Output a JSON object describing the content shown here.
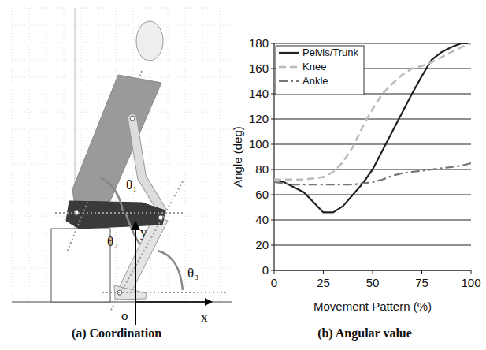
{
  "diagram": {
    "caption": "(a) Coordination",
    "labels": {
      "theta1": "θ₁",
      "theta2": "θ₂",
      "theta3": "θ₃",
      "x": "x",
      "y": "y",
      "o": "o"
    }
  },
  "chart_data": {
    "type": "line",
    "title": "(b) Angular value",
    "x_label": "Movement Pattern (%)",
    "y_label": "Angle (deg)",
    "x": [
      0,
      5,
      10,
      15,
      20,
      25,
      30,
      35,
      40,
      45,
      50,
      55,
      60,
      65,
      70,
      75,
      80,
      85,
      90,
      95,
      100
    ],
    "series": [
      {
        "name": "Pelvis/Trunk",
        "color": "#222222",
        "line_style": "solid",
        "values": [
          72,
          70,
          66,
          62,
          54,
          46,
          46,
          51,
          60,
          69,
          80,
          95,
          110,
          125,
          140,
          154,
          167,
          173,
          177,
          180,
          180
        ]
      },
      {
        "name": "Knee",
        "color": "#bbbbbb",
        "line_style": "dashed",
        "values": [
          72,
          72,
          72,
          72,
          73,
          74,
          78,
          86,
          98,
          114,
          128,
          140,
          148,
          155,
          160,
          162,
          165,
          169,
          173,
          177,
          180
        ]
      },
      {
        "name": "Ankle",
        "color": "#777777",
        "line_style": "dashdot",
        "values": [
          70,
          69,
          68,
          68,
          68,
          68,
          68,
          68,
          68,
          69,
          70,
          72,
          75,
          77,
          78,
          79,
          80,
          81,
          82,
          83,
          85
        ]
      }
    ],
    "xlim": [
      0,
      100
    ],
    "xticks": [
      0,
      25,
      50,
      75,
      100
    ],
    "ylim": [
      0,
      180
    ],
    "yticks": [
      0,
      20,
      40,
      60,
      80,
      100,
      120,
      140,
      160,
      180
    ],
    "grid": true,
    "legend": "upper left"
  }
}
